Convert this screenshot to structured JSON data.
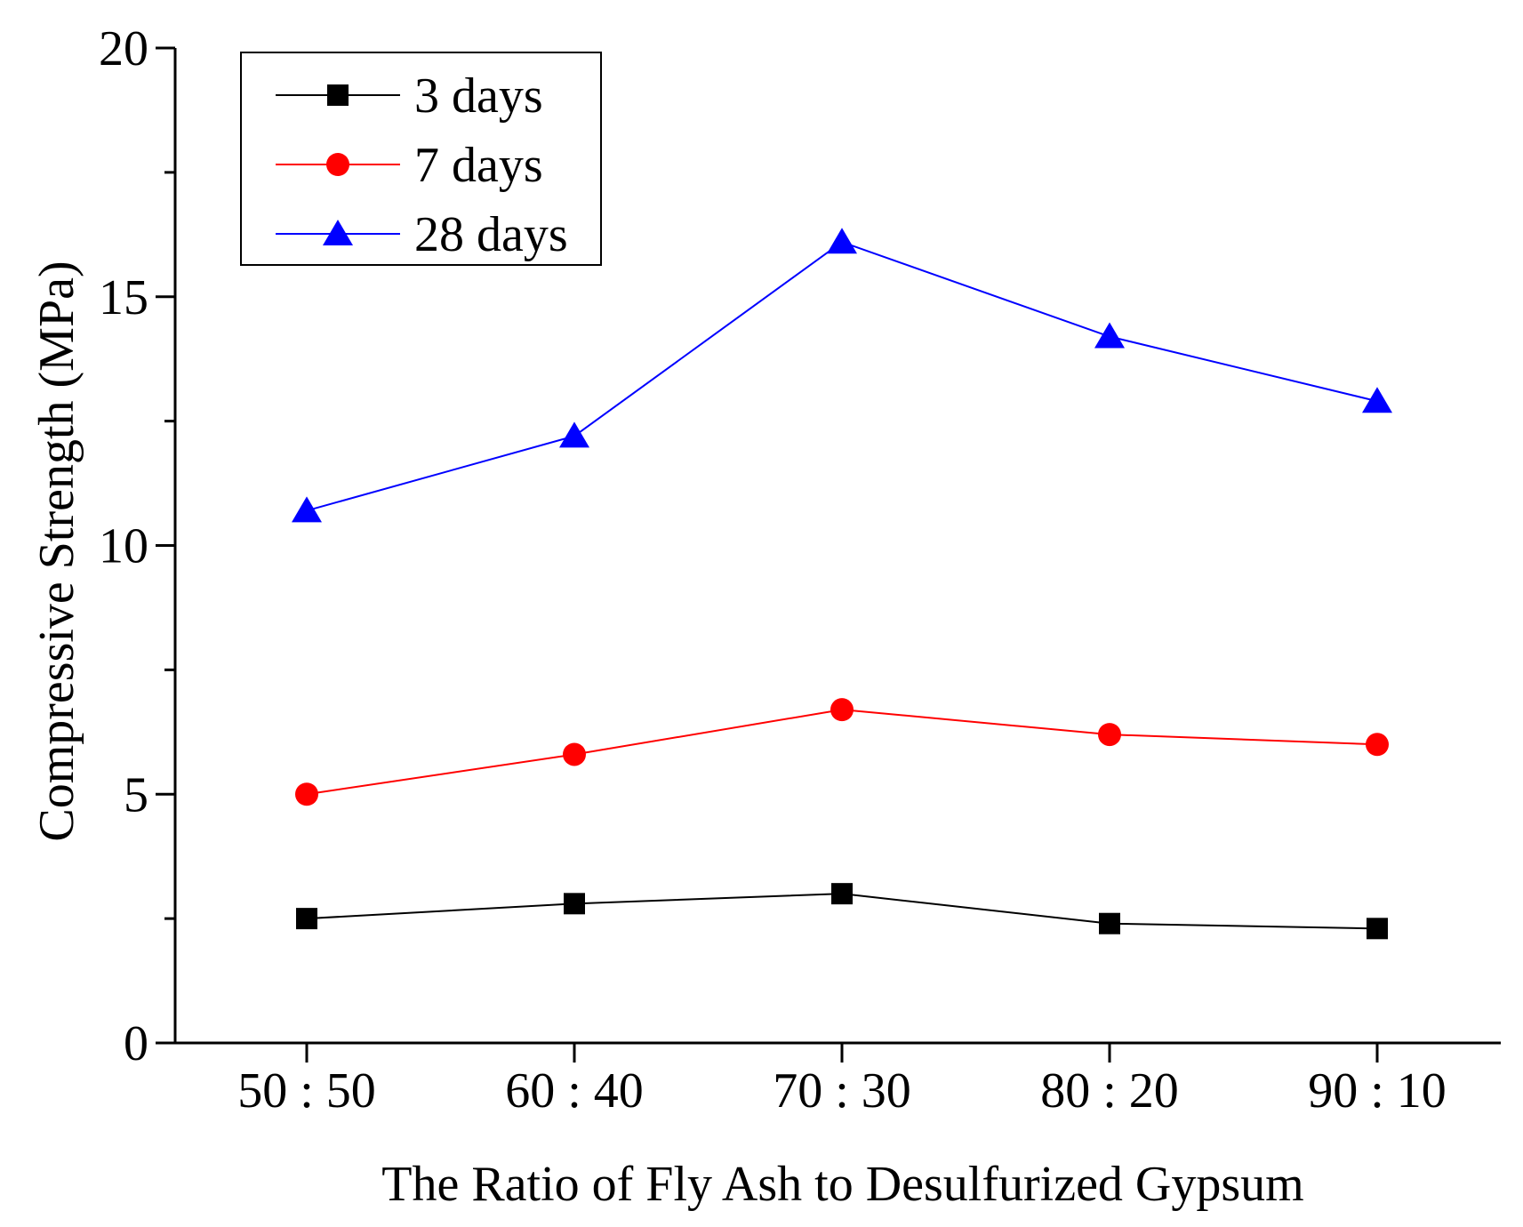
{
  "chart_data": {
    "type": "line",
    "title": "",
    "xlabel": "The Ratio of Fly Ash to Desulfurized Gypsum",
    "ylabel": "Compressive Strength (MPa)",
    "categories": [
      "50 : 50",
      "60 : 40",
      "70 : 30",
      "80 : 20",
      "90 : 10"
    ],
    "ylim": [
      0,
      20
    ],
    "yticks": [
      0,
      5,
      10,
      15,
      20
    ],
    "y_tick_labels": [
      "0",
      "5",
      "10",
      "15",
      "20"
    ],
    "grid": false,
    "legend_position": "top-left",
    "series": [
      {
        "name": "3 days",
        "values": [
          2.5,
          2.8,
          3.0,
          2.4,
          2.3
        ],
        "color": "#000000",
        "marker": "square"
      },
      {
        "name": "7 days",
        "values": [
          5.0,
          5.8,
          6.7,
          6.2,
          6.0
        ],
        "color": "#ff0000",
        "marker": "circle"
      },
      {
        "name": "28 days",
        "values": [
          10.7,
          12.2,
          16.1,
          14.2,
          12.9
        ],
        "color": "#0000ff",
        "marker": "triangle"
      }
    ]
  }
}
